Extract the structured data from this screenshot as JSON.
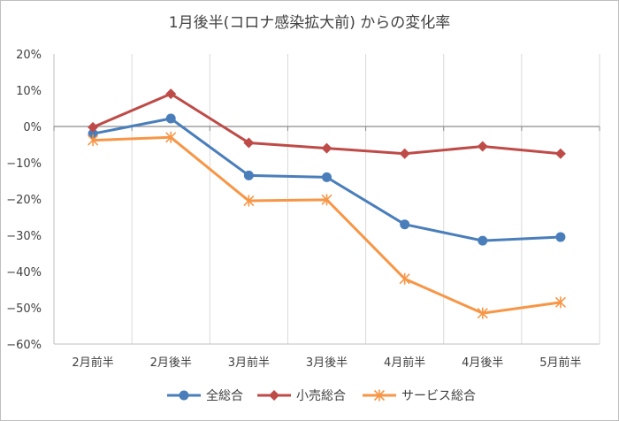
{
  "chart_data": {
    "type": "line",
    "title": "1月後半(コロナ感染拡大前) からの変化率",
    "categories": [
      "2月前半",
      "2月後半",
      "3月前半",
      "3月後半",
      "4月前半",
      "4月後半",
      "5月前半"
    ],
    "y_ticks": [
      "20%",
      "10%",
      "0%",
      "−10%",
      "−20%",
      "−30%",
      "−40%",
      "−50%",
      "−60%"
    ],
    "ylim": [
      -60,
      20
    ],
    "y_unit": "%",
    "grid": "vertical",
    "legend_position": "bottom",
    "series": [
      {
        "name": "全総合",
        "color": "#4a7ebb",
        "marker": "circle",
        "values": [
          -2,
          2.2,
          -13.5,
          -14,
          -27,
          -31.5,
          -30.5
        ]
      },
      {
        "name": "小売総合",
        "color": "#be4b48",
        "marker": "diamond",
        "values": [
          -0.2,
          9,
          -4.5,
          -6,
          -7.5,
          -5.5,
          -7.5
        ]
      },
      {
        "name": "サービス総合",
        "color": "#f79646",
        "marker": "star",
        "values": [
          -3.8,
          -3,
          -20.5,
          -20.2,
          -42,
          -51.5,
          -48.5
        ]
      }
    ]
  }
}
